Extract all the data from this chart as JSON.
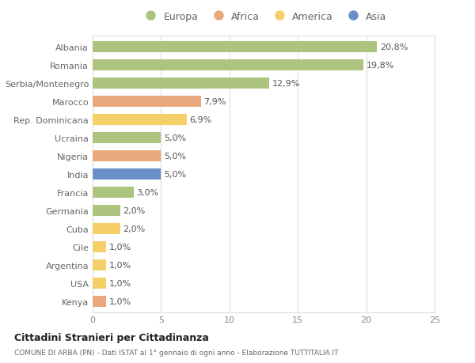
{
  "countries": [
    "Albania",
    "Romania",
    "Serbia/Montenegro",
    "Marocco",
    "Rep. Dominicana",
    "Ucraina",
    "Nigeria",
    "India",
    "Francia",
    "Germania",
    "Cuba",
    "Cile",
    "Argentina",
    "USA",
    "Kenya"
  ],
  "values": [
    20.8,
    19.8,
    12.9,
    7.9,
    6.9,
    5.0,
    5.0,
    5.0,
    3.0,
    2.0,
    2.0,
    1.0,
    1.0,
    1.0,
    1.0
  ],
  "labels": [
    "20,8%",
    "19,8%",
    "12,9%",
    "7,9%",
    "6,9%",
    "5,0%",
    "5,0%",
    "5,0%",
    "3,0%",
    "2,0%",
    "2,0%",
    "1,0%",
    "1,0%",
    "1,0%",
    "1,0%"
  ],
  "continents": [
    "Europa",
    "Europa",
    "Europa",
    "Africa",
    "America",
    "Europa",
    "Africa",
    "Asia",
    "Europa",
    "Europa",
    "America",
    "America",
    "America",
    "America",
    "Africa"
  ],
  "colors": {
    "Europa": "#adc47e",
    "Africa": "#e8a87c",
    "America": "#f5cf68",
    "Asia": "#6b8fc9"
  },
  "title": "Cittadini Stranieri per Cittadinanza",
  "subtitle": "COMUNE DI ARBA (PN) - Dati ISTAT al 1° gennaio di ogni anno - Elaborazione TUTTITALIA.IT",
  "xlim": [
    0,
    25
  ],
  "xticks": [
    0,
    5,
    10,
    15,
    20,
    25
  ],
  "background_color": "#ffffff",
  "grid_color": "#dddddd",
  "bar_height": 0.6,
  "label_fontsize": 8,
  "ytick_fontsize": 8,
  "xtick_fontsize": 8
}
